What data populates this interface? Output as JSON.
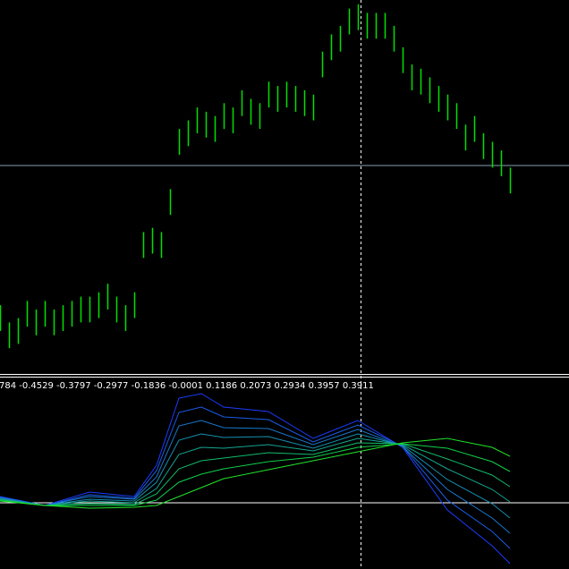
{
  "chart_data": [
    {
      "type": "range",
      "color": "#00e000",
      "xlim": [
        0,
        636
      ],
      "ylim": [
        0,
        435
      ],
      "x": [
        0,
        10,
        20,
        30,
        40,
        50,
        60,
        70,
        80,
        90,
        100,
        110,
        120,
        130,
        140,
        150,
        160,
        170,
        180,
        190,
        200,
        210,
        220,
        230,
        240,
        250,
        260,
        270,
        280,
        290,
        300,
        310,
        320,
        330,
        340,
        350,
        360,
        370,
        380,
        390,
        400,
        410,
        420,
        430,
        440,
        450,
        460,
        470,
        480,
        490,
        500,
        510,
        520,
        530,
        540,
        550,
        560,
        570
      ],
      "high": [
        80,
        60,
        65,
        85,
        75,
        85,
        75,
        80,
        85,
        90,
        90,
        95,
        105,
        90,
        80,
        95,
        165,
        170,
        165,
        215,
        285,
        295,
        310,
        305,
        300,
        315,
        310,
        330,
        320,
        315,
        340,
        335,
        340,
        335,
        330,
        325,
        375,
        395,
        405,
        425,
        430,
        420,
        420,
        420,
        405,
        380,
        360,
        355,
        345,
        335,
        325,
        315,
        290,
        300,
        280,
        270,
        260,
        240
      ],
      "low": [
        50,
        30,
        35,
        55,
        45,
        55,
        45,
        50,
        55,
        60,
        60,
        65,
        75,
        60,
        50,
        65,
        135,
        140,
        135,
        185,
        255,
        265,
        280,
        275,
        270,
        285,
        280,
        300,
        290,
        285,
        310,
        305,
        310,
        305,
        300,
        295,
        345,
        365,
        375,
        395,
        400,
        390,
        390,
        390,
        375,
        350,
        330,
        325,
        315,
        305,
        295,
        285,
        260,
        270,
        250,
        240,
        230,
        210
      ]
    },
    {
      "type": "line",
      "xlim": [
        0,
        636
      ],
      "ylim": [
        -0.74,
        1.37
      ],
      "annotation": "784 -0.4529 -0.3797 -0.2977 -0.1836 -0.0001 0.1186 0.2073 0.2934 0.3957 0.3911",
      "x": [
        0,
        50,
        100,
        150,
        175,
        200,
        225,
        250,
        300,
        350,
        400,
        450,
        500,
        550,
        570
      ],
      "series": [
        {
          "color": "#1c3cff",
          "values": [
            0.07,
            -0.03,
            0.12,
            0.07,
            0.42,
            1.17,
            1.22,
            1.07,
            1.02,
            0.72,
            0.92,
            0.62,
            -0.08,
            -0.48,
            -0.68
          ]
        },
        {
          "color": "#1a5ee6",
          "values": [
            0.06,
            -0.03,
            0.09,
            0.05,
            0.36,
            1.01,
            1.07,
            0.96,
            0.93,
            0.68,
            0.87,
            0.63,
            0.03,
            -0.32,
            -0.51
          ]
        },
        {
          "color": "#1878cc",
          "values": [
            0.06,
            -0.03,
            0.07,
            0.04,
            0.29,
            0.86,
            0.92,
            0.84,
            0.83,
            0.65,
            0.82,
            0.63,
            0.15,
            -0.17,
            -0.34
          ]
        },
        {
          "color": "#168fb0",
          "values": [
            0.05,
            -0.03,
            0.04,
            0.02,
            0.23,
            0.7,
            0.77,
            0.73,
            0.74,
            0.61,
            0.77,
            0.64,
            0.26,
            -0.01,
            -0.17
          ]
        },
        {
          "color": "#14a590",
          "values": [
            0.04,
            -0.03,
            0.02,
            0,
            0.16,
            0.54,
            0.62,
            0.61,
            0.65,
            0.58,
            0.72,
            0.65,
            0.38,
            0.15,
            0.01
          ]
        },
        {
          "color": "#12bb6c",
          "values": [
            0.03,
            -0.03,
            -0.01,
            -0.02,
            0.1,
            0.38,
            0.47,
            0.5,
            0.56,
            0.54,
            0.67,
            0.66,
            0.49,
            0.31,
            0.18
          ]
        },
        {
          "color": "#12cf48",
          "values": [
            0.03,
            -0.03,
            -0.03,
            -0.03,
            0.03,
            0.23,
            0.32,
            0.38,
            0.46,
            0.51,
            0.62,
            0.66,
            0.61,
            0.46,
            0.35
          ]
        },
        {
          "color": "#22e42a",
          "values": [
            0.02,
            -0.03,
            -0.06,
            -0.05,
            -0.03,
            0.07,
            0.17,
            0.27,
            0.37,
            0.47,
            0.57,
            0.67,
            0.72,
            0.62,
            0.52
          ]
        }
      ]
    }
  ]
}
